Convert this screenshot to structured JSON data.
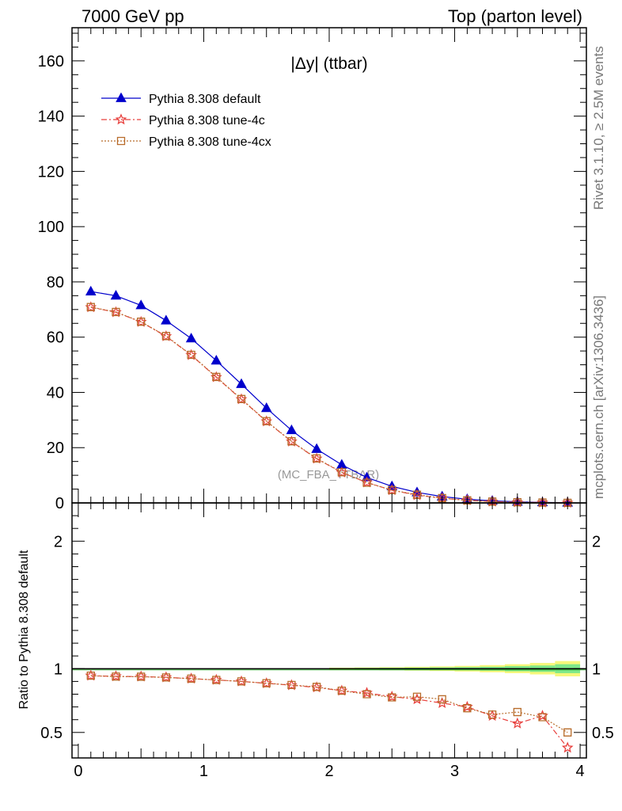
{
  "header": {
    "left": "7000 GeV pp",
    "right": "Top (parton level)"
  },
  "side_labels": {
    "rivet": "Rivet 3.1.10, ≥ 2.5M events",
    "mcplots": "mcplots.cern.ch [arXiv:1306.3436]"
  },
  "chart_data": [
    {
      "type": "line",
      "title": "|Δy| (ttbar)",
      "watermark": "(MC_FBA_TTBAR)",
      "xlabel": "",
      "ylabel": "",
      "xlim": [
        -0.05,
        4.05
      ],
      "ylim": [
        0,
        172
      ],
      "yticks": [
        0,
        20,
        40,
        60,
        80,
        100,
        120,
        140,
        160
      ],
      "grid": false,
      "legend_position": "top-left",
      "x": [
        0.1,
        0.3,
        0.5,
        0.7,
        0.9,
        1.1,
        1.3,
        1.5,
        1.7,
        1.9,
        2.1,
        2.3,
        2.5,
        2.7,
        2.9,
        3.1,
        3.3,
        3.5,
        3.7,
        3.9
      ],
      "series": [
        {
          "name": "Pythia 8.308 default",
          "color": "#0000cc",
          "marker": "triangle",
          "line": "solid",
          "values": [
            76.5,
            75.0,
            71.5,
            66.0,
            59.5,
            51.5,
            43.0,
            34.3,
            26.3,
            19.5,
            13.8,
            9.2,
            6.0,
            3.8,
            2.3,
            1.35,
            0.75,
            0.4,
            0.2,
            0.08
          ]
        },
        {
          "name": "Pythia 8.308 tune-4c",
          "color": "#e8413e",
          "marker": "star",
          "line": "dashdot",
          "values": [
            70.8,
            69.0,
            65.5,
            60.3,
            53.5,
            45.5,
            37.5,
            29.5,
            22.2,
            16.0,
            11.0,
            7.4,
            4.6,
            2.8,
            1.65,
            0.95,
            0.47,
            0.23,
            0.13,
            0.03
          ]
        },
        {
          "name": "Pythia 8.308 tune-4cx",
          "color": "#b86c2b",
          "marker": "square",
          "line": "dotted",
          "values": [
            70.9,
            69.1,
            65.6,
            60.4,
            53.6,
            45.6,
            37.6,
            29.6,
            22.3,
            16.1,
            11.1,
            7.3,
            4.65,
            2.95,
            1.75,
            0.92,
            0.48,
            0.26,
            0.12,
            0.04
          ]
        }
      ]
    },
    {
      "type": "line",
      "title": "",
      "xlabel": "",
      "ylabel": "Ratio to Pythia 8.308 default",
      "xlim": [
        -0.05,
        4.05
      ],
      "ylim": [
        0.3,
        2.3
      ],
      "yticks": [
        0.5,
        1,
        2
      ],
      "xticks": [
        0,
        1,
        2,
        3,
        4
      ],
      "grid": false,
      "reference_line": 1,
      "band_x_edges": [
        2.0,
        2.2,
        2.4,
        2.6,
        2.8,
        3.0,
        3.2,
        3.4,
        3.6,
        3.8,
        4.0
      ],
      "band_inner": [
        0.005,
        0.006,
        0.007,
        0.008,
        0.01,
        0.012,
        0.015,
        0.02,
        0.025,
        0.035
      ],
      "band_outer": [
        0.008,
        0.01,
        0.012,
        0.015,
        0.018,
        0.022,
        0.028,
        0.035,
        0.045,
        0.06
      ],
      "x": [
        0.1,
        0.3,
        0.5,
        0.7,
        0.9,
        1.1,
        1.3,
        1.5,
        1.7,
        1.9,
        2.1,
        2.3,
        2.5,
        2.7,
        2.9,
        3.1,
        3.3,
        3.5,
        3.7,
        3.9
      ],
      "series": [
        {
          "name": "Pythia 8.308 tune-4c",
          "color": "#e8413e",
          "marker": "star",
          "line": "dashdot",
          "values": [
            0.945,
            0.94,
            0.938,
            0.932,
            0.922,
            0.912,
            0.9,
            0.885,
            0.87,
            0.853,
            0.827,
            0.81,
            0.78,
            0.76,
            0.73,
            0.7,
            0.63,
            0.57,
            0.63,
            0.38
          ]
        },
        {
          "name": "Pythia 8.308 tune-4cx",
          "color": "#b86c2b",
          "marker": "square",
          "line": "dotted",
          "values": [
            0.945,
            0.938,
            0.937,
            0.931,
            0.922,
            0.912,
            0.9,
            0.886,
            0.872,
            0.857,
            0.827,
            0.8,
            0.775,
            0.78,
            0.76,
            0.69,
            0.64,
            0.66,
            0.62,
            0.5
          ]
        }
      ]
    }
  ]
}
